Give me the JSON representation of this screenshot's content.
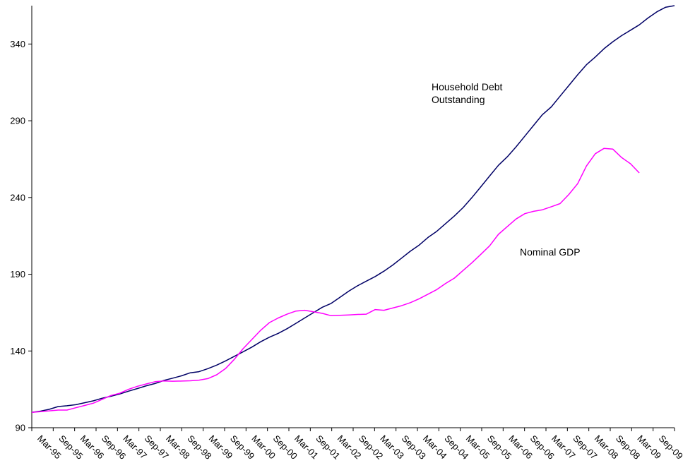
{
  "chart_data": {
    "type": "line",
    "title": "",
    "xlabel": "",
    "ylabel": "",
    "ylim": [
      90,
      365
    ],
    "y_ticks": [
      90,
      140,
      190,
      240,
      290,
      340
    ],
    "grid": false,
    "legend": "none",
    "x_tick_labels": [
      "Mar-95",
      "Sep-95",
      "Mar-96",
      "Sep-96",
      "Mar-97",
      "Sep-97",
      "Mar-98",
      "Sep-98",
      "Mar-99",
      "Sep-99",
      "Mar-00",
      "Sep-00",
      "Mar-01",
      "Sep-01",
      "Mar-02",
      "Sep-02",
      "Mar-03",
      "Sep-03",
      "Mar-04",
      "Sep-04",
      "Mar-05",
      "Sep-05",
      "Mar-06",
      "Sep-06",
      "Mar-07",
      "Sep-07",
      "Mar-08",
      "Sep-08",
      "Mar-09",
      "Sep-09"
    ],
    "series": [
      {
        "name": "Household Debt Outstanding",
        "color": "#000066",
        "values": [
          100,
          100.8,
          102,
          103.8,
          104.3,
          105,
          106.3,
          107.5,
          109.2,
          110.5,
          112,
          113.8,
          115.5,
          117.3,
          118.8,
          120.8,
          122.3,
          123.8,
          125.8,
          126.5,
          128.5,
          130.8,
          133.5,
          136.5,
          139.5,
          142.5,
          146,
          149,
          151.5,
          154.5,
          158,
          161.5,
          165,
          168.5,
          171,
          175,
          179,
          182.5,
          185.5,
          188.5,
          192,
          196,
          200.5,
          205,
          209,
          214,
          218,
          223,
          228,
          233.5,
          240,
          247,
          254,
          261,
          266.5,
          273,
          280,
          287,
          294,
          299,
          306,
          313,
          320,
          326.5,
          331.5,
          337,
          341.5,
          345.5,
          349,
          352.5,
          357,
          361,
          364,
          365
        ]
      },
      {
        "name": "Nominal GDP",
        "color": "#ff00ff",
        "values": [
          100,
          100.5,
          101,
          101.5,
          101.5,
          103,
          104.5,
          106,
          108.5,
          111,
          112.5,
          115,
          117,
          118.5,
          120,
          120.5,
          120.3,
          120.4,
          120.6,
          121,
          122,
          124.5,
          128.5,
          134.5,
          141.5,
          147.5,
          153.5,
          158.5,
          161.5,
          164,
          166,
          166.5,
          165.5,
          164.5,
          163,
          163.2,
          163.5,
          163.8,
          164,
          167,
          166.5,
          168,
          169.5,
          171.5,
          174,
          177,
          180,
          184,
          187.5,
          192.5,
          197.5,
          203,
          208.5,
          216,
          221,
          226,
          229.5,
          231,
          232,
          234,
          236,
          242,
          249,
          260.5,
          268.5,
          272,
          271.5,
          266,
          262,
          256
        ]
      }
    ],
    "annotations": {
      "household_line1": "Household Debt",
      "household_line2": "Outstanding",
      "nominal_gdp": "Nominal GDP"
    }
  }
}
